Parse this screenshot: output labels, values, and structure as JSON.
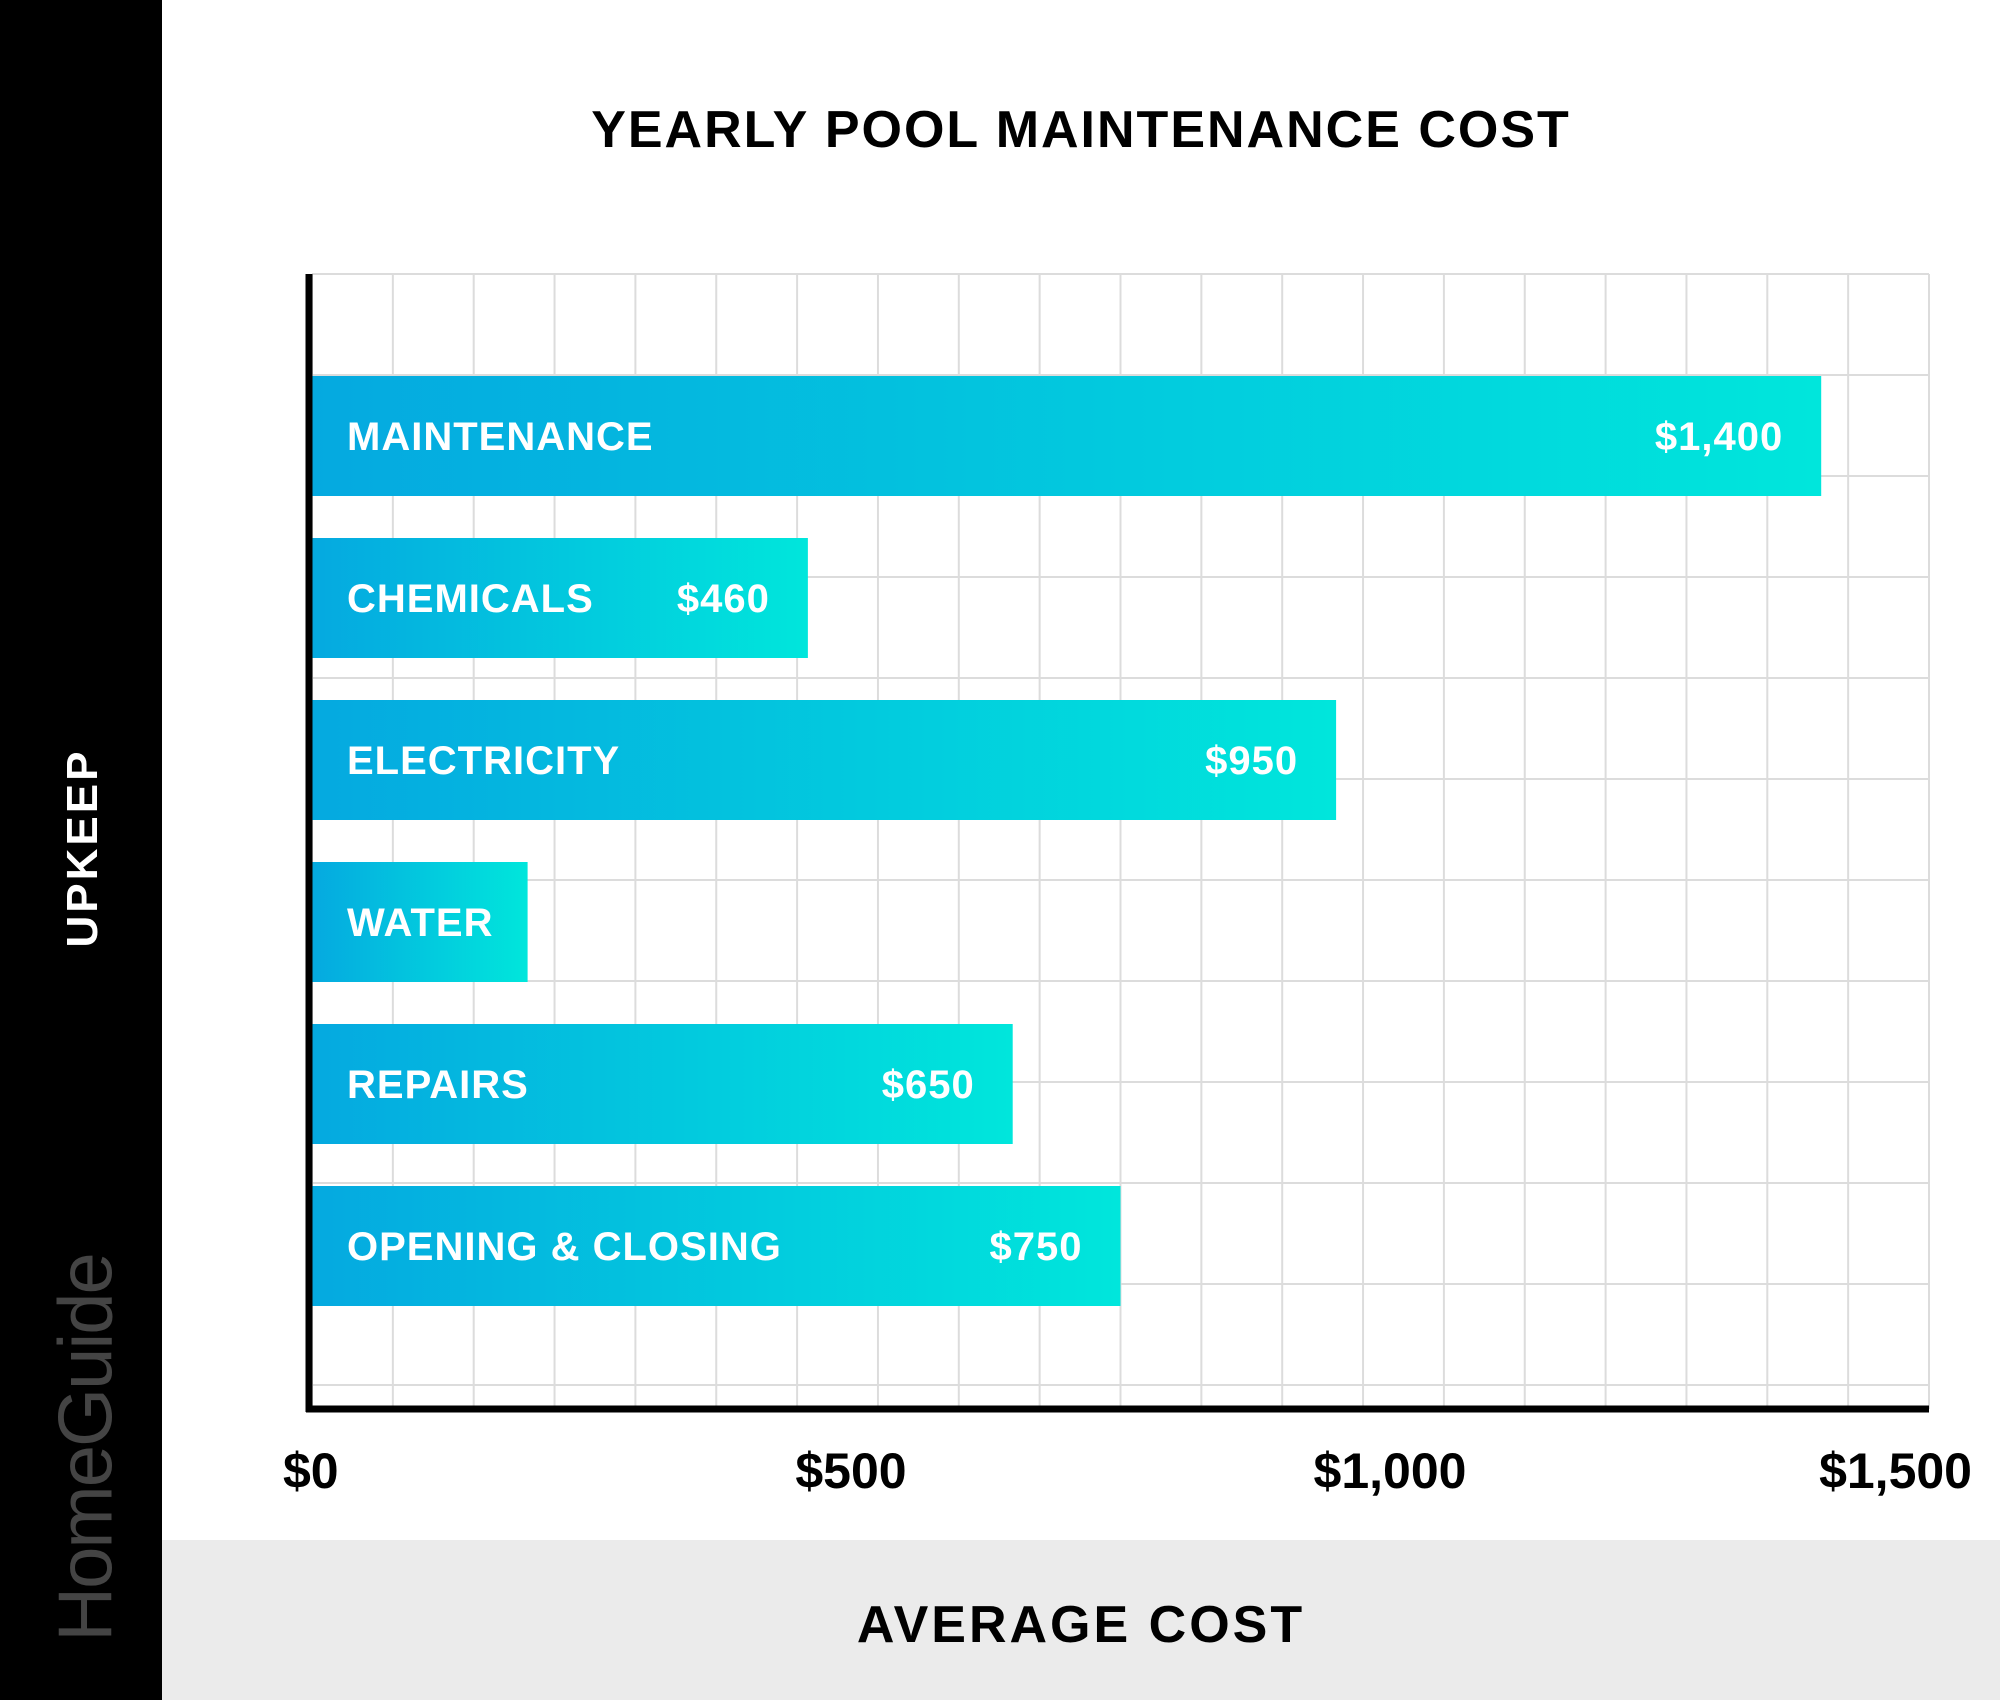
{
  "chart_data": {
    "type": "bar",
    "orientation": "horizontal",
    "title": "YEARLY POOL MAINTENANCE COST",
    "xlabel": "AVERAGE COST",
    "ylabel": "UPKEEP",
    "categories": [
      "MAINTENANCE",
      "CHEMICALS",
      "ELECTRICITY",
      "WATER",
      "REPAIRS",
      "OPENING & CLOSING"
    ],
    "values": [
      1400,
      460,
      950,
      200,
      650,
      750
    ],
    "value_labels": [
      "$1,400",
      "$460",
      "$950",
      "",
      "$650",
      "$750"
    ],
    "xlim": [
      0,
      1500
    ],
    "xticks": [
      0,
      500,
      1000,
      1500
    ],
    "xtick_labels": [
      "$0",
      "$500",
      "$1,000",
      "$1,500"
    ],
    "grid": true,
    "colors": {
      "bar_start": "#05a9e0",
      "bar_end": "#00e6dc"
    }
  },
  "brand": "HomeGuide"
}
